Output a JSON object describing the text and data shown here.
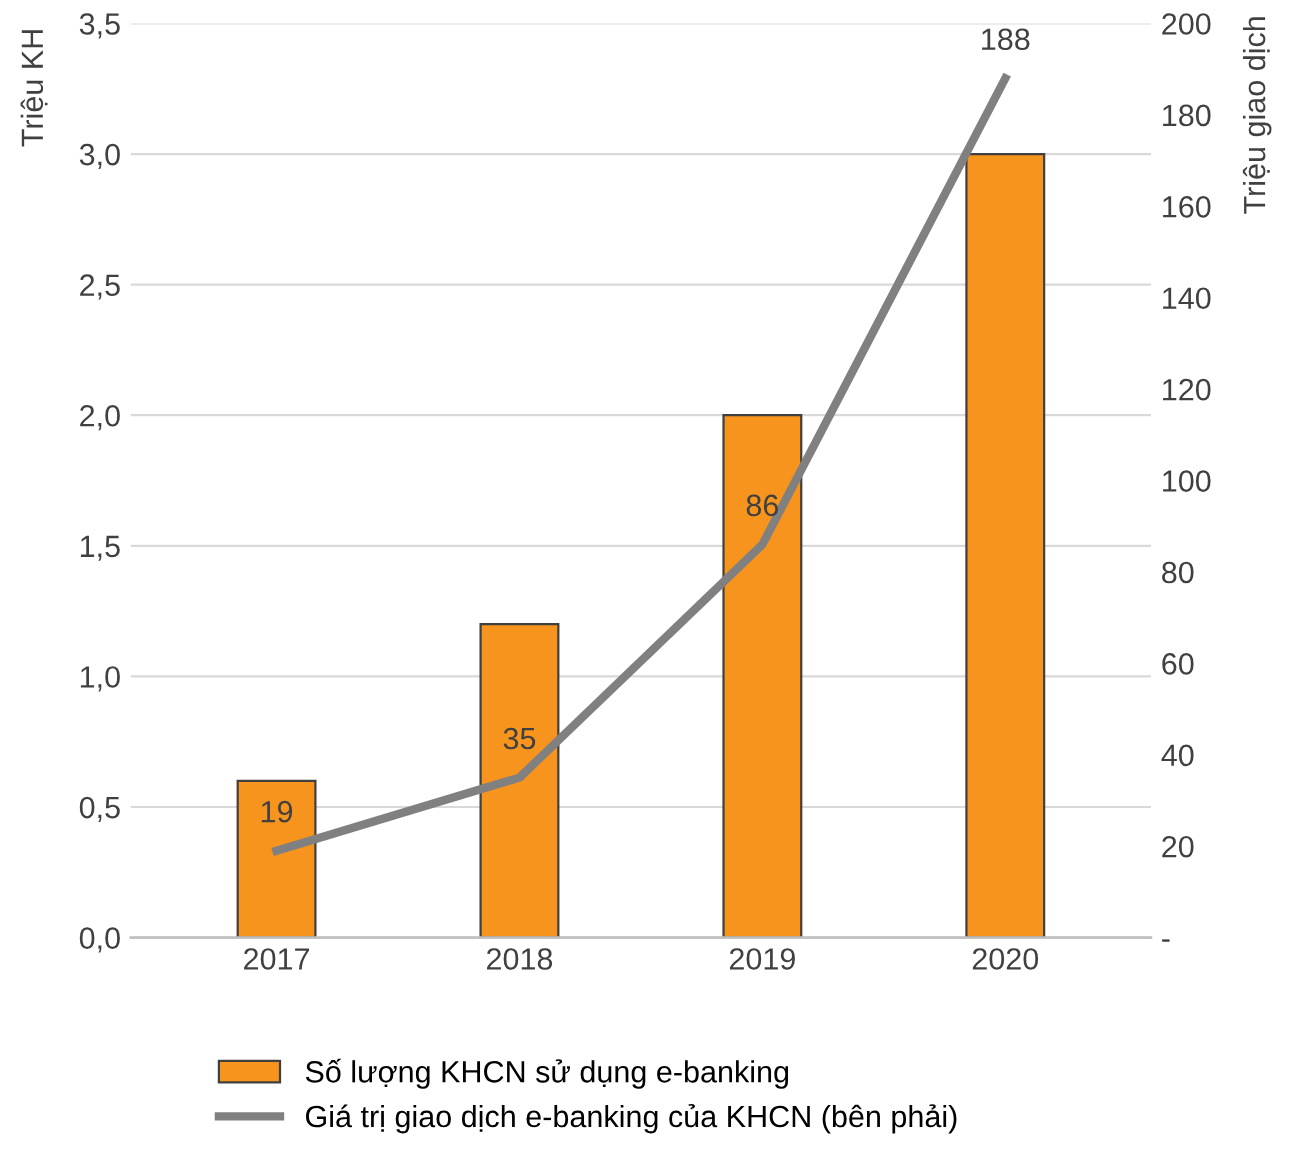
{
  "chart_data": {
    "type": "bar",
    "ylabel": "Triệu KH",
    "y2label": "Triệu giao dịch",
    "categories": [
      "2017",
      "2018",
      "2019",
      "2020"
    ],
    "series": [
      {
        "name": "Số lượng KHCN sử dụng e-banking",
        "color": "#f7941d",
        "values": [
          0.6,
          1.2,
          2.0,
          3.0
        ]
      },
      {
        "name": "Giá trị giao dịch e-banking của KHCN (bên phải)",
        "type": "line",
        "axis": "y2",
        "color": "#808080",
        "values": [
          19,
          35,
          86,
          188
        ],
        "value_labels": [
          "19",
          "35",
          "86",
          "188"
        ]
      }
    ],
    "ylim": [
      0,
      3.5
    ],
    "yticks": [
      {
        "value": 0,
        "label": "0,0"
      },
      {
        "value": 0.5,
        "label": "0,5"
      },
      {
        "value": 1,
        "label": "1,0"
      },
      {
        "value": 1.5,
        "label": "1,5"
      },
      {
        "value": 2,
        "label": "2,0"
      },
      {
        "value": 2.5,
        "label": "2,5"
      },
      {
        "value": 3,
        "label": "3,0"
      },
      {
        "value": 3.5,
        "label": "3,5"
      }
    ],
    "y2lim": [
      0,
      200
    ],
    "y2ticks": [
      {
        "value": 0,
        "label": "-"
      },
      20,
      40,
      60,
      80,
      100,
      120,
      140,
      160,
      180,
      200
    ],
    "grid": "y",
    "legend": "bottom",
    "marker": "none",
    "line_style": "solid"
  }
}
